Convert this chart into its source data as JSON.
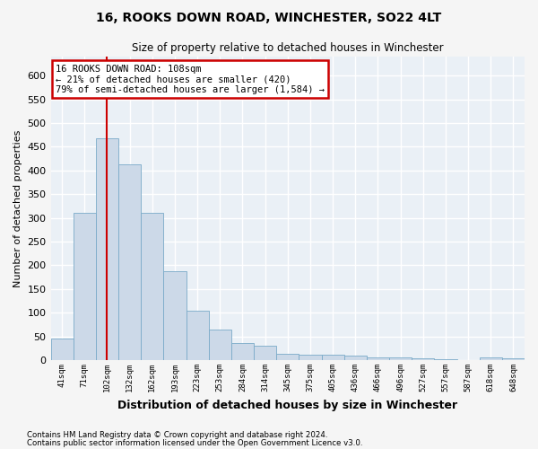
{
  "title": "16, ROOKS DOWN ROAD, WINCHESTER, SO22 4LT",
  "subtitle": "Size of property relative to detached houses in Winchester",
  "xlabel": "Distribution of detached houses by size in Winchester",
  "ylabel": "Number of detached properties",
  "bar_color": "#ccd9e8",
  "bar_edge_color": "#7aaac8",
  "categories": [
    "41sqm",
    "71sqm",
    "102sqm",
    "132sqm",
    "162sqm",
    "193sqm",
    "223sqm",
    "253sqm",
    "284sqm",
    "314sqm",
    "345sqm",
    "375sqm",
    "405sqm",
    "436sqm",
    "466sqm",
    "496sqm",
    "527sqm",
    "557sqm",
    "587sqm",
    "618sqm",
    "648sqm"
  ],
  "values": [
    45,
    311,
    467,
    412,
    311,
    188,
    104,
    64,
    37,
    30,
    13,
    11,
    12,
    10,
    5,
    5,
    4,
    2,
    0,
    5,
    4
  ],
  "ylim": [
    0,
    640
  ],
  "yticks": [
    0,
    50,
    100,
    150,
    200,
    250,
    300,
    350,
    400,
    450,
    500,
    550,
    600
  ],
  "property_bin_index": 2,
  "annotation_title": "16 ROOKS DOWN ROAD: 108sqm",
  "annotation_line1": "← 21% of detached houses are smaller (420)",
  "annotation_line2": "79% of semi-detached houses are larger (1,584) →",
  "vline_color": "#cc0000",
  "annotation_box_edgecolor": "#cc0000",
  "footer1": "Contains HM Land Registry data © Crown copyright and database right 2024.",
  "footer2": "Contains public sector information licensed under the Open Government Licence v3.0.",
  "plot_bgcolor": "#eaf0f6",
  "fig_bgcolor": "#f5f5f5",
  "grid_color": "#ffffff"
}
